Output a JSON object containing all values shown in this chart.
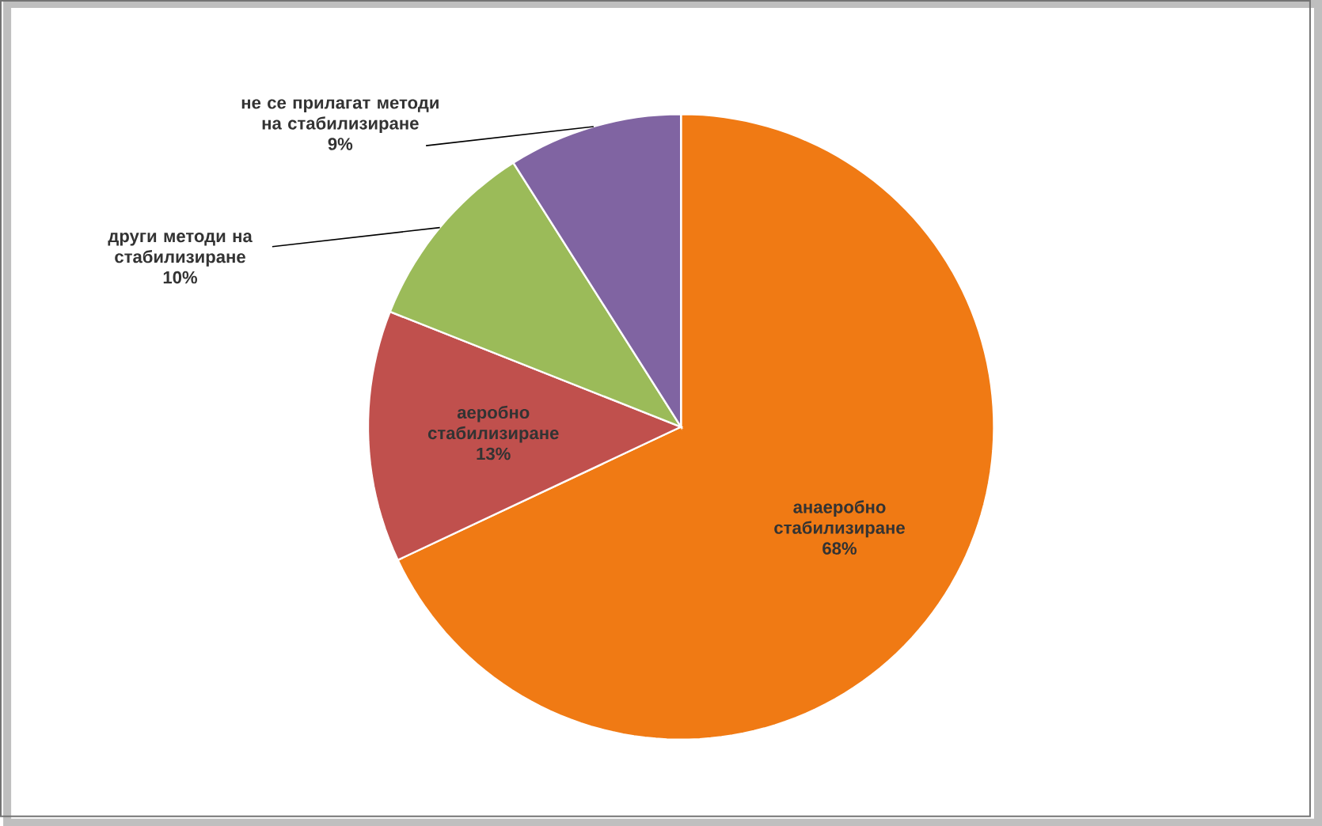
{
  "chart_data": {
    "type": "pie",
    "categories": [
      "анаеробно стабилизиране",
      "аеробно стабилизиране",
      "други методи на стабилизиране",
      "не се прилагат методи на стабилизиране"
    ],
    "values": [
      68,
      13,
      10,
      9
    ],
    "value_labels": [
      "68%",
      "13%",
      "10%",
      "9%"
    ],
    "colors": [
      "#f07a14",
      "#c0504d",
      "#9bbb59",
      "#8064a2"
    ]
  }
}
